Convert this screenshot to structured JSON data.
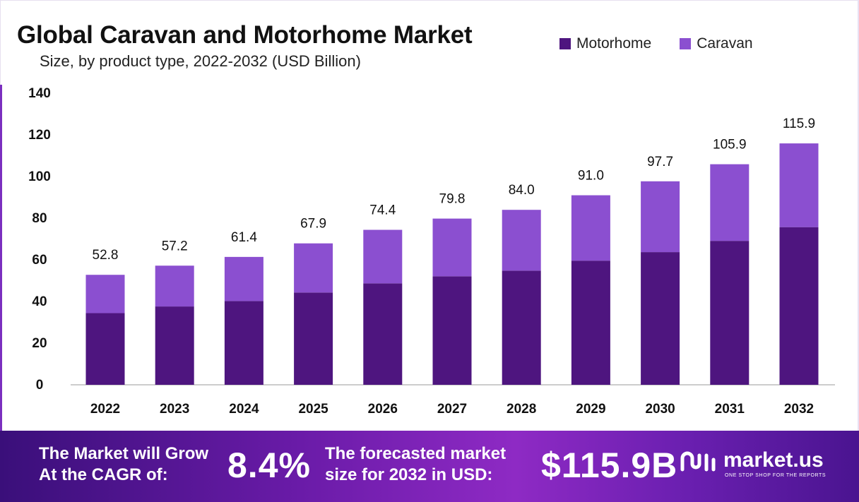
{
  "colors": {
    "motorhome": "#4e157f",
    "caravan": "#8b4fd0",
    "axis": "#999999"
  },
  "chart_data": {
    "type": "bar",
    "stacked": true,
    "title": "Global Caravan and Motorhome Market",
    "subtitle": "Size, by product type, 2022-2032 (USD Billion)",
    "categories": [
      "2022",
      "2023",
      "2024",
      "2025",
      "2026",
      "2027",
      "2028",
      "2029",
      "2030",
      "2031",
      "2032"
    ],
    "series": [
      {
        "name": "Motorhome",
        "values": [
          34.4,
          37.6,
          40.2,
          44.3,
          48.7,
          52.1,
          54.8,
          59.6,
          63.7,
          69.1,
          75.7
        ]
      },
      {
        "name": "Caravan",
        "values": [
          18.4,
          19.6,
          21.2,
          23.6,
          25.7,
          27.7,
          29.2,
          31.4,
          34.0,
          36.8,
          40.2
        ]
      }
    ],
    "totals": [
      "52.8",
      "57.2",
      "61.4",
      "67.9",
      "74.4",
      "79.8",
      "84.0",
      "91.0",
      "97.7",
      "105.9",
      "115.9"
    ],
    "ylim": [
      0,
      140
    ],
    "yticks": [
      "0",
      "20",
      "40",
      "60",
      "80",
      "100",
      "120",
      "140"
    ],
    "legend_position": "top-right",
    "grid": false
  },
  "footer": {
    "growth_line1": "The Market will Grow",
    "growth_line2": "At the CAGR of:",
    "cagr": "8.4%",
    "size_line1": "The forecasted market",
    "size_line2": "size for 2032 in USD:",
    "size_value": "$115.9B",
    "brand": "market.us",
    "tagline": "ONE STOP SHOP FOR THE REPORTS"
  }
}
